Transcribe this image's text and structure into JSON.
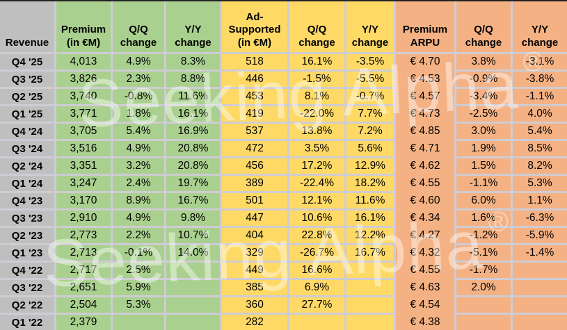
{
  "colors": {
    "gray": "#bfbfbf",
    "green": "#a9d08e",
    "yellow": "#ffd966",
    "orange": "#f4b183",
    "gap": "#cfccd4",
    "topline": "#232323",
    "text": "#000000"
  },
  "watermark": {
    "text": "Seeking Alpha",
    "reg": "®"
  },
  "chart_data": {
    "type": "table",
    "corner_label": "Revenue",
    "columns": [
      {
        "id": "quarter",
        "group": "gray",
        "header": "Revenue"
      },
      {
        "id": "premium-revenue",
        "group": "green",
        "header": "Premium\n(in €M)"
      },
      {
        "id": "premium-qq",
        "group": "green",
        "header": "Q/Q\nchange"
      },
      {
        "id": "premium-yy",
        "group": "green",
        "header": "Y/Y\nchange"
      },
      {
        "id": "ad-revenue",
        "group": "yellow",
        "header": "Ad-\nSupported\n(in €M)"
      },
      {
        "id": "ad-qq",
        "group": "yellow",
        "header": "Q/Q\nchange"
      },
      {
        "id": "ad-yy",
        "group": "yellow",
        "header": "Y/Y\nchange"
      },
      {
        "id": "premium-arpu",
        "group": "orange",
        "header": "Premium\nARPU"
      },
      {
        "id": "arpu-qq",
        "group": "orange",
        "header": "Q/Q\nchange"
      },
      {
        "id": "arpu-yy",
        "group": "orange",
        "header": "Y/Y\nchange"
      }
    ],
    "rows": [
      [
        "Q4 '25",
        "4,013",
        "4.9%",
        "8.3%",
        "518",
        "16.1%",
        "-3.5%",
        "€ 4.70",
        "3.8%",
        "-3.1%"
      ],
      [
        "Q3 '25",
        "3,826",
        "2.3%",
        "8.8%",
        "446",
        "-1.5%",
        "-5.5%",
        "€ 4.53",
        "-0.9%",
        "-3.8%"
      ],
      [
        "Q2 '25",
        "3,740",
        "-0.8%",
        "11.6%",
        "453",
        "8.1%",
        "-0.7%",
        "€ 4.57",
        "-3.4%",
        "-1.1%"
      ],
      [
        "Q1 '25",
        "3,771",
        "1.8%",
        "16.1%",
        "419",
        "-22.0%",
        "7.7%",
        "€ 4.73",
        "-2.5%",
        "4.0%"
      ],
      [
        "Q4 '24",
        "3,705",
        "5.4%",
        "16.9%",
        "537",
        "13.8%",
        "7.2%",
        "€ 4.85",
        "3.0%",
        "5.4%"
      ],
      [
        "Q3 '24",
        "3,516",
        "4.9%",
        "20.8%",
        "472",
        "3.5%",
        "5.6%",
        "€ 4.71",
        "1.9%",
        "8.5%"
      ],
      [
        "Q2 '24",
        "3,351",
        "3.2%",
        "20.8%",
        "456",
        "17.2%",
        "12.9%",
        "€ 4.62",
        "1.5%",
        "8.2%"
      ],
      [
        "Q1 '24",
        "3,247",
        "2.4%",
        "19.7%",
        "389",
        "-22.4%",
        "18.2%",
        "€ 4.55",
        "-1.1%",
        "5.3%"
      ],
      [
        "Q4 '23",
        "3,170",
        "8.9%",
        "16.7%",
        "501",
        "12.1%",
        "11.6%",
        "€ 4.60",
        "6.0%",
        "1.1%"
      ],
      [
        "Q3 '23",
        "2,910",
        "4.9%",
        "9.8%",
        "447",
        "10.6%",
        "16.1%",
        "€ 4.34",
        "1.6%",
        "-6.3%"
      ],
      [
        "Q2 '23",
        "2,773",
        "2.2%",
        "10.7%",
        "404",
        "22.8%",
        "12.2%",
        "€ 4.27",
        "-1.2%",
        "-5.9%"
      ],
      [
        "Q1 '23",
        "2,713",
        "-0.1%",
        "14.0%",
        "329",
        "-26.7%",
        "16.7%",
        "€ 4.32",
        "-5.1%",
        "-1.4%"
      ],
      [
        "Q4 '22",
        "2,717",
        "2.5%",
        "",
        "449",
        "16.6%",
        "",
        "€ 4.55",
        "-1.7%",
        ""
      ],
      [
        "Q3 '22",
        "2,651",
        "5.9%",
        "",
        "385",
        "6.9%",
        "",
        "€ 4.63",
        "2.0%",
        ""
      ],
      [
        "Q2 '22",
        "2,504",
        "5.3%",
        "",
        "360",
        "27.7%",
        "",
        "€ 4.54",
        "",
        ""
      ],
      [
        "Q1 '22",
        "2,379",
        "",
        "",
        "282",
        "",
        "",
        "€ 4.38",
        "",
        ""
      ]
    ]
  }
}
